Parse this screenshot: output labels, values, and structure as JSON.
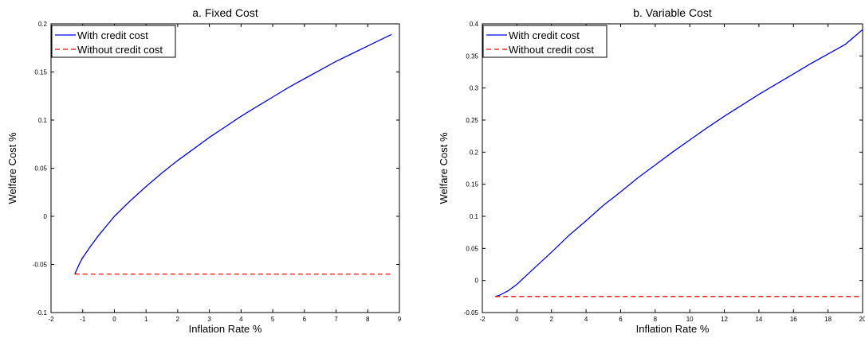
{
  "chart_data": [
    {
      "type": "line",
      "title": "a. Fixed Cost",
      "xlabel": "Inflation Rate %",
      "ylabel": "Welfare Cost %",
      "xlim": [
        -2,
        9
      ],
      "ylim": [
        -0.1,
        0.2
      ],
      "xticks": [
        -2,
        -1,
        0,
        1,
        2,
        3,
        4,
        5,
        6,
        7,
        8,
        9
      ],
      "xtick_labels": [
        "-2",
        "-1",
        "0",
        "1",
        "2",
        "3",
        "4",
        "5",
        "6",
        "7",
        "8",
        "9"
      ],
      "yticks": [
        -0.1,
        -0.05,
        0,
        0.05,
        0.1,
        0.15,
        0.2
      ],
      "ytick_labels": [
        "-0.1",
        "-0.05",
        "0",
        "0.05",
        "0.1",
        "0.15",
        "0.2"
      ],
      "grid": false,
      "legend_position": "top-left",
      "series": [
        {
          "name": "With credit cost",
          "style": "solid",
          "color": "#0000ff",
          "x": [
            -1.25,
            -1.1,
            -1.0,
            -0.75,
            -0.5,
            -0.25,
            0,
            0.5,
            1,
            1.5,
            2,
            2.5,
            3,
            3.5,
            4,
            4.5,
            5,
            5.5,
            6,
            6.5,
            7,
            7.5,
            8,
            8.5,
            8.75
          ],
          "y": [
            -0.06,
            -0.049,
            -0.043,
            -0.031,
            -0.02,
            -0.01,
            0.0,
            0.016,
            0.031,
            0.045,
            0.058,
            0.07,
            0.082,
            0.093,
            0.104,
            0.114,
            0.124,
            0.134,
            0.143,
            0.152,
            0.161,
            0.169,
            0.177,
            0.185,
            0.189
          ]
        },
        {
          "name": "Without credit cost",
          "style": "dashed",
          "color": "#ff0000",
          "x": [
            -1.25,
            8.75
          ],
          "y": [
            -0.06,
            -0.06
          ]
        }
      ]
    },
    {
      "type": "line",
      "title": "b. Variable Cost",
      "xlabel": "Inflation Rate %",
      "ylabel": "Welfare Cost %",
      "xlim": [
        -2,
        20
      ],
      "ylim": [
        -0.05,
        0.4
      ],
      "xticks": [
        -2,
        0,
        2,
        4,
        6,
        8,
        10,
        12,
        14,
        16,
        18,
        20
      ],
      "xtick_labels": [
        "-2",
        "0",
        "2",
        "4",
        "6",
        "8",
        "10",
        "12",
        "14",
        "16",
        "18",
        "20"
      ],
      "yticks": [
        -0.05,
        0,
        0.05,
        0.1,
        0.15,
        0.2,
        0.25,
        0.3,
        0.35,
        0.4
      ],
      "ytick_labels": [
        "-0.05",
        "0",
        "0.05",
        "0.1",
        "0.15",
        "0.2",
        "0.25",
        "0.3",
        "0.35",
        "0.4"
      ],
      "grid": false,
      "legend_position": "top-left",
      "series": [
        {
          "name": "With credit cost",
          "style": "solid",
          "color": "#0000ff",
          "x": [
            -1.25,
            -1.0,
            -0.5,
            0,
            1,
            2,
            3,
            4,
            5,
            6,
            7,
            8,
            9,
            10,
            11,
            12,
            13,
            14,
            15,
            16,
            17,
            18,
            19,
            20
          ],
          "y": [
            -0.025,
            -0.023,
            -0.016,
            -0.006,
            0.019,
            0.044,
            0.07,
            0.093,
            0.117,
            0.138,
            0.16,
            0.18,
            0.2,
            0.219,
            0.238,
            0.256,
            0.273,
            0.29,
            0.306,
            0.322,
            0.338,
            0.353,
            0.368,
            0.391
          ]
        },
        {
          "name": "Without credit cost",
          "style": "dashed",
          "color": "#ff0000",
          "x": [
            -1.25,
            20
          ],
          "y": [
            -0.025,
            -0.025
          ]
        }
      ]
    }
  ]
}
